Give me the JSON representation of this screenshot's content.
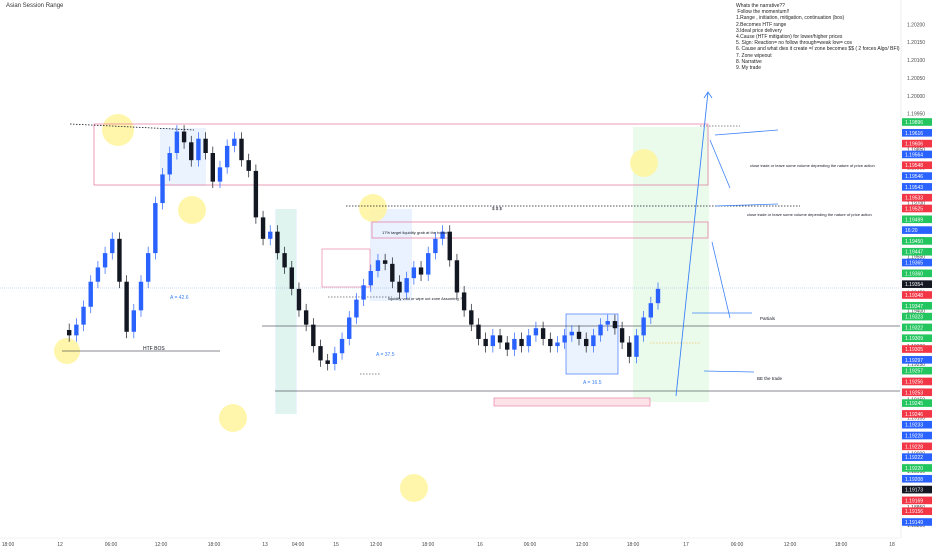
{
  "chart_data": {
    "type": "candlestick",
    "title": "Asian Session Range",
    "narrative_title": "Whats the narrative??",
    "narrative_items": [
      " Follow the momentum!!",
      "1.Range , initiation, mitigation, continuation (bos)",
      "2.Becomes HTF range",
      "3.Ideal price delivery",
      "4.Cause (HTF mitigation) for lower/higher prices",
      "5. Sign: Reaction= no follow through=weak low= cos",
      "6. Cause and what dies it create =/ zone becomes $$ ( 2 forces Algo/ BFI)",
      "7. Zone wipeout",
      "8. Narrative",
      "9. My trade"
    ],
    "x_labels": [
      "18:00",
      "12",
      "06:00",
      "12:00",
      "18:00",
      "13",
      "04:00",
      "15",
      "12:00",
      "18:00",
      "16",
      "06:00",
      "12:00",
      "18:00",
      "17",
      "06:00",
      "12:00",
      "18:00",
      "18"
    ],
    "y_ticks": [
      "1.20200",
      "1.20150",
      "1.20100",
      "1.20050",
      "1.20000",
      "1.19950",
      "1.19900",
      "1.19850",
      "1.19800",
      "1.19750",
      "1.19700",
      "1.19650",
      "1.19600",
      "1.19550",
      "1.19500",
      "1.19450",
      "1.19400",
      "1.19350",
      "1.19300",
      "1.19250",
      "1.19200",
      "1.19150",
      "1.19100",
      "1.19050",
      "1.19000",
      "1.18950",
      "1.18900",
      "1.18850",
      "1.18800"
    ],
    "y_range": [
      1.1878,
      1.2024
    ],
    "price_badges": [
      {
        "text": "1.19896",
        "color": "#22c55e"
      },
      {
        "text": "1.19616",
        "color": "#2962ff"
      },
      {
        "text": "1.19606",
        "color": "#f23645"
      },
      {
        "text": "1.19564",
        "color": "#2962ff"
      },
      {
        "text": "1.19548",
        "color": "#f23645"
      },
      {
        "text": "1.19546",
        "color": "#2962ff"
      },
      {
        "text": "1.19543",
        "color": "#2962ff"
      },
      {
        "text": "1.19533",
        "color": "#f23645"
      },
      {
        "text": "1.19525",
        "color": "#f23645"
      },
      {
        "text": "1.19499",
        "color": "#22c55e"
      },
      {
        "text": "16:20",
        "color": "#2962ff"
      },
      {
        "text": "1.19450",
        "color": "#22c55e"
      },
      {
        "text": "1.19447",
        "color": "#22c55e"
      },
      {
        "text": "1.19365",
        "color": "#2962ff"
      },
      {
        "text": "1.19360",
        "color": "#22c55e"
      },
      {
        "text": "1.19354",
        "color": "#131722"
      },
      {
        "text": "1.19348",
        "color": "#f23645"
      },
      {
        "text": "1.19347",
        "color": "#22c55e"
      },
      {
        "text": "1.19323",
        "color": "#22c55e"
      },
      {
        "text": "1.19322",
        "color": "#22c55e"
      },
      {
        "text": "1.19309",
        "color": "#22c55e"
      },
      {
        "text": "1.19305",
        "color": "#f23645"
      },
      {
        "text": "1.19297",
        "color": "#2962ff"
      },
      {
        "text": "1.19257",
        "color": "#22c55e"
      },
      {
        "text": "1.19256",
        "color": "#f23645"
      },
      {
        "text": "1.19253",
        "color": "#f23645"
      },
      {
        "text": "1.19245",
        "color": "#22c55e"
      },
      {
        "text": "1.19246",
        "color": "#f23645"
      },
      {
        "text": "1.19233",
        "color": "#2962ff"
      },
      {
        "text": "1.19228",
        "color": "#2962ff"
      },
      {
        "text": "1.19228",
        "color": "#f23645"
      },
      {
        "text": "1.19222",
        "color": "#2962ff"
      },
      {
        "text": "1.19220",
        "color": "#22c55e"
      },
      {
        "text": "1.19208",
        "color": "#2962ff"
      },
      {
        "text": "1.19173",
        "color": "#131722"
      },
      {
        "text": "1.19169",
        "color": "#f23645"
      },
      {
        "text": "1.19156",
        "color": "#f23645"
      },
      {
        "text": "1.19149",
        "color": "#2962ff"
      }
    ],
    "annotations": {
      "a1": "A = 42.6",
      "a2": "A = 37.5",
      "a3": "A = 16.5",
      "htf_bos": "HTF BOS",
      "liq_grab": "17% target liquidity grab at the bottom",
      "void": "liquidity void or wipe out zone Assuming ?",
      "close1": "close trade or leave some volume depending the nature of price action",
      "close2": "close trade or leave some volume depending the nature of price action",
      "partials": "Partials",
      "be": "BE the trade",
      "ssl": "$ $ $"
    },
    "series": [
      {
        "values": [
          1.19345,
          1.1933,
          1.1936,
          1.1941,
          1.1948,
          1.1952,
          1.1956,
          1.196,
          1.1948,
          1.1934,
          1.194,
          1.1948,
          1.1956,
          1.197,
          1.1978,
          1.1984,
          1.199,
          1.1987,
          1.1982,
          1.1988,
          1.1984,
          1.1976,
          1.198,
          1.1986,
          1.1988,
          1.1982,
          1.1979,
          1.1966,
          1.196,
          1.1962,
          1.1956,
          1.1952,
          1.1946,
          1.194,
          1.1936,
          1.193,
          1.1926,
          1.1925,
          1.1928,
          1.1932,
          1.1938,
          1.1943,
          1.1947,
          1.1951,
          1.1954,
          1.1953,
          1.1948,
          1.1945,
          1.1949,
          1.1952,
          1.195,
          1.1956,
          1.196,
          1.1962,
          1.1954,
          1.1945,
          1.194,
          1.1936,
          1.1932,
          1.193,
          1.1933,
          1.1931,
          1.1929,
          1.1932,
          1.193,
          1.1933,
          1.1935,
          1.1932,
          1.193,
          1.1931,
          1.1933,
          1.1934,
          1.1932,
          1.193,
          1.1933,
          1.1936,
          1.1937,
          1.1935,
          1.1931,
          1.1927,
          1.1933,
          1.1938,
          1.1942,
          1.1946
        ]
      }
    ]
  }
}
